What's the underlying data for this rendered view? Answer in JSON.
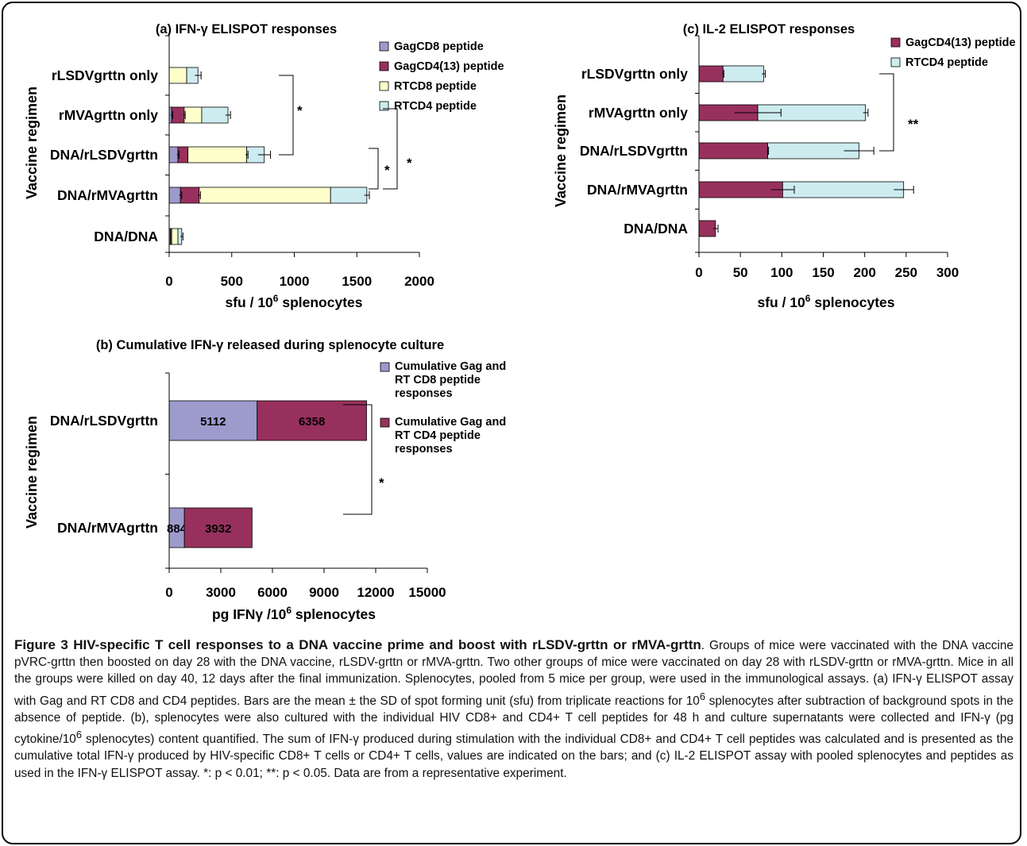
{
  "colors": {
    "gag_cd8": "#9d9acc",
    "gag_cd4": "#98305e",
    "rt_cd8": "#ffffcc",
    "rt_cd4": "#ccecf0",
    "cum_cd8": "#9d9acc",
    "cum_cd4": "#98305e",
    "axis": "#000000"
  },
  "chart_data": [
    {
      "id": "panel_a",
      "type": "bar",
      "orientation": "horizontal",
      "stacked": true,
      "title": "(a) IFN-γ ELISPOT responses",
      "xlabel_main": "sfu / 10",
      "xlabel_sup": "6",
      "xlabel_tail": " splenocytes",
      "ylabel": "Vaccine regimen",
      "categories": [
        "rLSDVgrttn only",
        "rMVAgrttn only",
        "DNA/rLSDVgrttn",
        "DNA/rMVAgrttn",
        "DNA/DNA"
      ],
      "xlim": [
        0,
        2000
      ],
      "xticks": [
        0,
        500,
        1000,
        1500,
        2000
      ],
      "legend_position": "top-right",
      "grid": false,
      "series": [
        {
          "name": "GagCD8 peptide",
          "color_key": "gag_cd8",
          "values": [
            0,
            20,
            70,
            90,
            10
          ]
        },
        {
          "name": "GagCD4(13) peptide",
          "color_key": "gag_cd4",
          "values": [
            0,
            100,
            80,
            150,
            10
          ]
        },
        {
          "name": "RTCD8 peptide",
          "color_key": "rt_cd8",
          "values": [
            140,
            140,
            470,
            1050,
            50
          ]
        },
        {
          "name": "RTCD4 peptide",
          "color_key": "rt_cd4",
          "values": [
            90,
            210,
            140,
            290,
            30
          ]
        }
      ],
      "error_bars": [
        [
          null,
          null,
          null,
          230
        ],
        [
          20,
          20,
          null,
          480
        ],
        [
          10,
          null,
          620,
          750
        ],
        [
          90,
          240,
          null,
          1560
        ],
        [
          null,
          null,
          null,
          100
        ]
      ],
      "error_sd": [
        [
          0,
          0,
          0,
          25
        ],
        [
          8,
          8,
          0,
          20
        ],
        [
          8,
          0,
          10,
          50
        ],
        [
          10,
          10,
          0,
          20
        ],
        [
          0,
          0,
          0,
          10
        ]
      ],
      "significance": [
        {
          "label": "*",
          "from": "rLSDVgrttn only",
          "to": "DNA/rLSDVgrttn"
        },
        {
          "label": "*",
          "from": "DNA/rLSDVgrttn",
          "to": "DNA/rMVAgrttn"
        },
        {
          "label": "*",
          "from": "rMVAgrttn only",
          "to": "DNA/rMVAgrttn"
        }
      ]
    },
    {
      "id": "panel_b",
      "type": "bar",
      "orientation": "horizontal",
      "stacked": true,
      "title": "(b) Cumulative IFN-γ released during splenocyte culture",
      "xlabel": "pg IFNγ /10",
      "xlabel_sup": "6",
      "xlabel_tail": " splenocytes",
      "ylabel": "Vaccine regimen",
      "categories": [
        "DNA/rLSDVgrttn",
        "DNA/rMVAgrttn"
      ],
      "xlim": [
        0,
        15000
      ],
      "xticks": [
        0,
        3000,
        6000,
        9000,
        12000,
        15000
      ],
      "legend_position": "top-right",
      "grid": false,
      "series": [
        {
          "name": "Cumulative Gag and RT CD8 peptide responses",
          "legend_lines": [
            "Cumulative Gag and",
            "RT CD8 peptide",
            "responses"
          ],
          "color_key": "cum_cd8",
          "values": [
            5112,
            884
          ],
          "labels": [
            "5112",
            "884"
          ]
        },
        {
          "name": "Cumulative Gag and RT CD4 peptide responses",
          "legend_lines": [
            "Cumulative Gag and",
            "RT CD4 peptide",
            "responses"
          ],
          "color_key": "cum_cd4",
          "values": [
            6358,
            3932
          ],
          "labels": [
            "6358",
            "3932"
          ]
        }
      ],
      "significance": [
        {
          "label": "*",
          "from": "DNA/rLSDVgrttn",
          "to": "DNA/rMVAgrttn"
        }
      ]
    },
    {
      "id": "panel_c",
      "type": "bar",
      "orientation": "horizontal",
      "stacked": true,
      "title": "(c) IL-2 ELISPOT responses",
      "xlabel_main": "sfu / 10",
      "xlabel_sup": "6",
      "xlabel_tail": " splenocytes",
      "ylabel": "Vaccine regimen",
      "categories": [
        "rLSDVgrttn only",
        "rMVAgrttn only",
        "DNA/rLSDVgrttn",
        "DNA/rMVAgrttn",
        "DNA/DNA"
      ],
      "xlim": [
        0,
        300
      ],
      "xticks": [
        0,
        50,
        100,
        150,
        200,
        250,
        300
      ],
      "legend_position": "top-right",
      "grid": false,
      "series": [
        {
          "name": "GagCD4(13) peptide",
          "color_key": "gag_cd4",
          "values": [
            29,
            71,
            83,
            101,
            20
          ]
        },
        {
          "name": "RTCD4 peptide",
          "color_key": "rt_cd4",
          "values": [
            49,
            130,
            110,
            146,
            0
          ]
        }
      ],
      "error_sd": [
        [
          1,
          28,
          1,
          14,
          3
        ],
        [
          2,
          3,
          18,
          12,
          0
        ]
      ],
      "significance": [
        {
          "label": "**",
          "from": "rLSDVgrttn only",
          "to": "DNA/rLSDVgrttn"
        }
      ]
    }
  ],
  "caption": {
    "head": "Figure 3 HIV-specific T cell responses to a DNA vaccine prime and boost with rLSDV-grttn or rMVA-grttn",
    "body": ". Groups of mice were vaccinated with the DNA vaccine pVRC-grttn then boosted on day 28 with the DNA vaccine, rLSDV-grttn or rMVA-grttn. Two other groups of mice were vaccinated on day 28 with rLSDV-grttn or rMVA-grttn. Mice in all the groups were killed on day 40, 12 days after the final immunization. Splenocytes, pooled from 5 mice per group, were used in the immunological assays. (a) IFN-γ ELISPOT assay with Gag and RT CD8 and CD4 peptides. Bars are the mean ± the SD of spot forming unit (sfu) from triplicate reactions for 10",
    "sup1": "6",
    "body2": " splenocytes after subtraction of background spots in the absence of peptide. (b), splenocytes were also cultured with the individual HIV CD8+ and CD4+ T cell peptides for 48 h and culture supernatants were collected and IFN-γ (pg cytokine/10",
    "sup2": "6",
    "body3": " splenocytes) content quantified. The sum of IFN-γ produced during stimulation with the individual CD8+ and CD4+ T cell peptides was calculated and is presented as the cumulative total IFN-γ produced by HIV-specific CD8+ T cells or CD4+ T cells, values are indicated on the bars; and (c) IL-2 ELISPOT assay with pooled splenocytes and peptides as used in the IFN-γ ELISPOT assay. *: p < 0.01; **: p < 0.05. Data are from a representative experiment."
  }
}
